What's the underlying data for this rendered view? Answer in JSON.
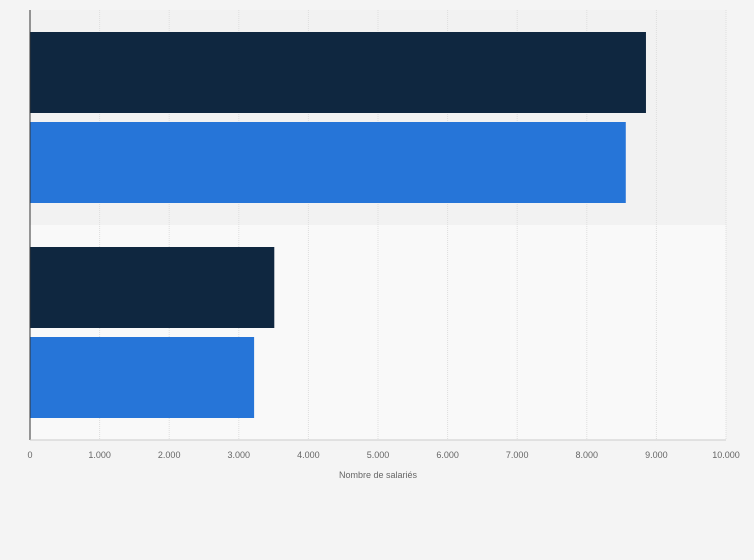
{
  "chart_data": {
    "type": "bar",
    "orientation": "horizontal",
    "title": "",
    "xlabel": "Nombre de salariés",
    "ylabel": "",
    "xlim": [
      0,
      10000
    ],
    "x_ticks": [
      "0",
      "1.000",
      "2.000",
      "3.000",
      "4.000",
      "5.000",
      "6.000",
      "7.000",
      "8.000",
      "9.000",
      "10.000"
    ],
    "categories": [
      "",
      ""
    ],
    "series": [
      {
        "color": "#0f2740",
        "values": [
          8850,
          3510
        ]
      },
      {
        "color": "#2675d8",
        "values": [
          8560,
          3220
        ]
      }
    ],
    "grid": "vertical",
    "legend": "none"
  }
}
